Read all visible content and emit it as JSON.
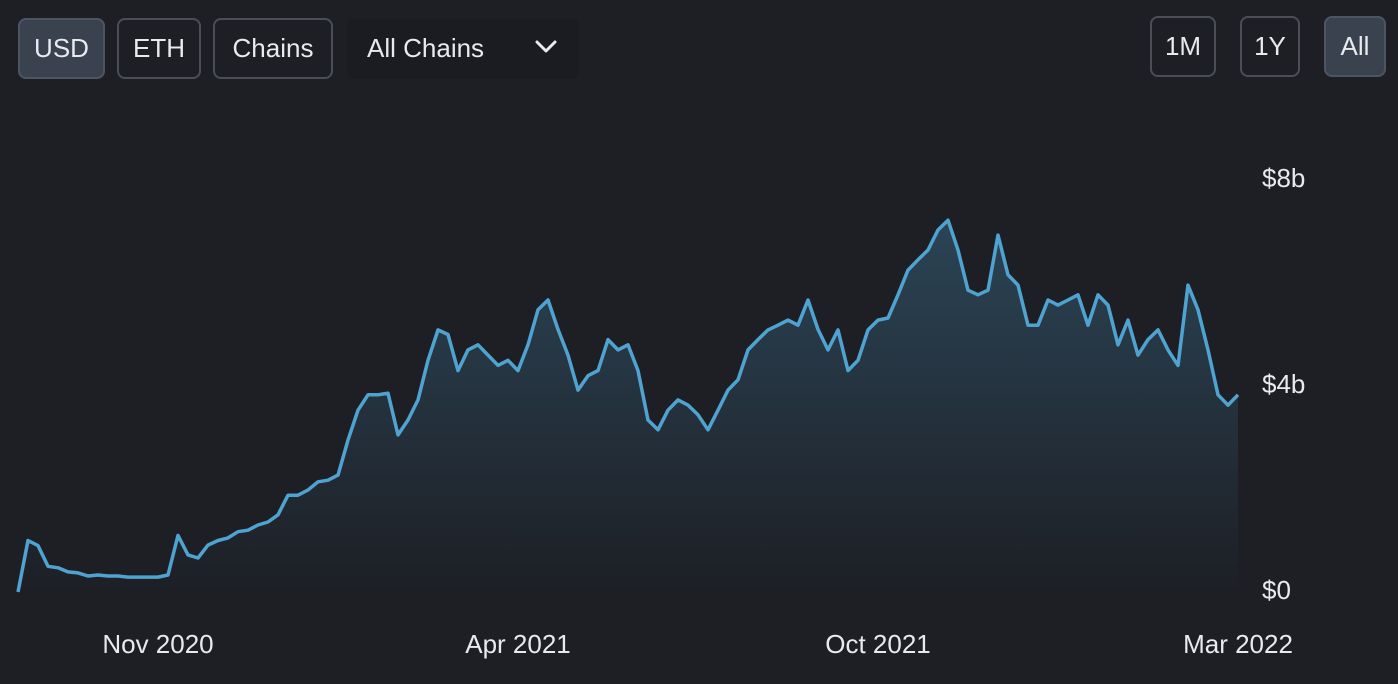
{
  "controls": {
    "currency": [
      "USD",
      "ETH"
    ],
    "chains_button": "Chains",
    "chain_select": "All Chains",
    "ranges": [
      "1M",
      "1Y",
      "All"
    ]
  },
  "chart_data": {
    "type": "line",
    "categories": [
      null,
      null,
      null,
      null,
      null,
      null,
      null,
      null,
      null,
      null,
      null,
      null,
      null,
      null,
      "Nov 2020",
      null,
      null,
      null,
      null,
      null,
      null,
      null,
      null,
      null,
      null,
      null,
      null,
      null,
      null,
      null,
      null,
      null,
      null,
      null,
      null,
      null,
      null,
      null,
      null,
      null,
      null,
      null,
      null,
      null,
      null,
      null,
      null,
      null,
      null,
      null,
      "Apr 2021",
      null,
      null,
      null,
      null,
      null,
      null,
      null,
      null,
      null,
      null,
      null,
      null,
      null,
      null,
      null,
      null,
      null,
      null,
      null,
      null,
      null,
      null,
      null,
      null,
      null,
      null,
      null,
      null,
      null,
      null,
      null,
      null,
      null,
      null,
      null,
      "Oct 2021",
      null,
      null,
      null,
      null,
      null,
      null,
      null,
      null,
      null,
      null,
      null,
      null,
      null,
      null,
      null,
      null,
      null,
      null,
      null,
      null,
      null,
      null,
      null,
      null,
      null,
      null,
      null,
      null,
      null,
      null,
      null,
      null,
      null,
      null,
      null,
      "Mar 2022"
    ],
    "series": [
      {
        "color": "#4fa3d1",
        "values": [
          0,
          1.0,
          0.9,
          0.5,
          0.47,
          0.39,
          0.37,
          0.31,
          0.33,
          0.31,
          0.31,
          0.29,
          0.29,
          0.29,
          0.29,
          0.33,
          1.1,
          0.72,
          0.66,
          0.91,
          1.0,
          1.05,
          1.17,
          1.2,
          1.3,
          1.36,
          1.5,
          1.88,
          1.88,
          1.98,
          2.14,
          2.17,
          2.27,
          2.95,
          3.53,
          3.83,
          3.83,
          3.86,
          3.05,
          3.34,
          3.73,
          4.5,
          5.09,
          5.0,
          4.3,
          4.7,
          4.8,
          4.6,
          4.4,
          4.5,
          4.3,
          4.8,
          5.48,
          5.67,
          5.1,
          4.6,
          3.92,
          4.2,
          4.3,
          4.9,
          4.7,
          4.8,
          4.3,
          3.34,
          3.15,
          3.53,
          3.73,
          3.63,
          3.44,
          3.15,
          3.53,
          3.92,
          4.12,
          4.7,
          4.9,
          5.09,
          5.18,
          5.28,
          5.18,
          5.67,
          5.1,
          4.7,
          5.09,
          4.3,
          4.5,
          5.09,
          5.28,
          5.32,
          5.77,
          6.25,
          6.45,
          6.64,
          7.03,
          7.22,
          6.64,
          5.86,
          5.77,
          5.86,
          6.93,
          6.16,
          5.96,
          5.18,
          5.18,
          5.67,
          5.57,
          5.67,
          5.77,
          5.18,
          5.77,
          5.57,
          4.8,
          5.28,
          4.6,
          4.9,
          5.09,
          4.7,
          4.4,
          5.96,
          5.48,
          4.7,
          3.83,
          3.63,
          3.83
        ]
      }
    ],
    "ylim": [
      0,
      8
    ],
    "yticks": [
      {
        "value": 0,
        "label": "$0"
      },
      {
        "value": 4,
        "label": "$4b"
      },
      {
        "value": 8,
        "label": "$8b"
      }
    ]
  }
}
